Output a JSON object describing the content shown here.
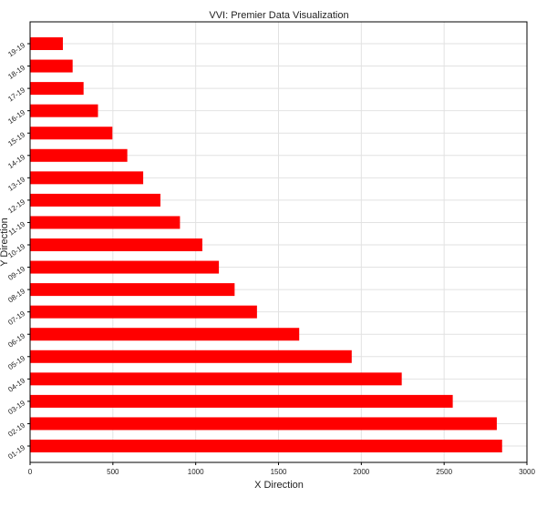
{
  "chart_data": {
    "type": "bar",
    "orientation": "horizontal",
    "title": "VVI: Premier Data Visualization",
    "xlabel": "X Direction",
    "ylabel": "Y Direction",
    "xlim": [
      0,
      3000
    ],
    "xticks": [
      0,
      500,
      1000,
      1500,
      2000,
      2500,
      3000
    ],
    "grid": true,
    "bar_color": "#ff0000",
    "categories": [
      "01-19",
      "02-19",
      "03-19",
      "04-19",
      "05-19",
      "06-19",
      "07-19",
      "08-19",
      "09-19",
      "10-19",
      "11-19",
      "12-19",
      "13-19",
      "14-19",
      "15-19",
      "16-19",
      "17-19",
      "18-19",
      "19-19"
    ],
    "values": [
      2850,
      2818,
      2552,
      2244,
      1942,
      1625,
      1370,
      1235,
      1140,
      1040,
      905,
      787,
      683,
      587,
      497,
      410,
      323,
      257,
      198
    ]
  }
}
